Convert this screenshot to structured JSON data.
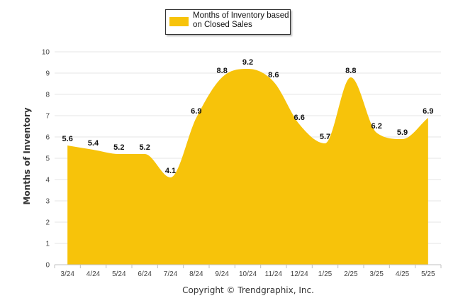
{
  "chart_data": {
    "type": "area",
    "categories": [
      "3/24",
      "4/24",
      "5/24",
      "6/24",
      "7/24",
      "8/24",
      "9/24",
      "10/24",
      "11/24",
      "12/24",
      "1/25",
      "2/25",
      "3/25",
      "4/25",
      "5/25"
    ],
    "series": [
      {
        "name": "Months of Inventory based on Closed Sales",
        "values": [
          5.6,
          5.4,
          5.2,
          5.2,
          4.1,
          6.9,
          8.8,
          9.2,
          8.6,
          6.6,
          5.7,
          8.8,
          6.2,
          5.9,
          6.9
        ],
        "labels": [
          "5.6",
          "5.4",
          "5.2",
          "5.2",
          "4.1",
          "6.9",
          "8.8",
          "9.2",
          "8.6",
          "6.6",
          "5.7",
          "8.8",
          "6.2",
          "5.9",
          "6.9"
        ]
      }
    ],
    "ylabel": "Months of Inventory",
    "ylim": [
      0,
      10
    ],
    "yticks": [
      "0",
      "1",
      "2",
      "3",
      "4",
      "5",
      "6",
      "7",
      "8",
      "9",
      "10"
    ],
    "grid": true,
    "legend_position": "top-center",
    "colors": {
      "fill": "#f7c30a",
      "grid": "#e6e6e6",
      "axis": "#c0c0c0"
    }
  },
  "legend": {
    "label": "Months of Inventory based on Closed Sales"
  },
  "footer": {
    "copyright": "Copyright © Trendgraphix, Inc."
  }
}
